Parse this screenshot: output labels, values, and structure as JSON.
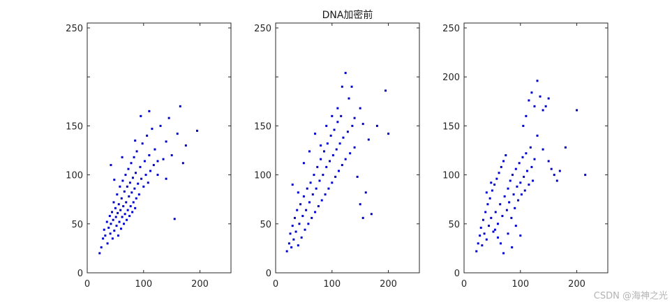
{
  "figure": {
    "title": "DNA加密前",
    "watermark": "CSDN @海神之光"
  },
  "chart_data": [
    {
      "type": "scatter",
      "xlim": [
        0,
        255
      ],
      "ylim": [
        0,
        255
      ],
      "xticks": [
        0,
        100,
        200
      ],
      "yticks": [
        0,
        50,
        100,
        150,
        200,
        250
      ],
      "xtick_labels": [
        "0",
        "100",
        "200"
      ],
      "ytick_labels": [
        "0",
        "50",
        "100",
        "150",
        "",
        "250"
      ],
      "grid": false,
      "marker_color": "#0000cc",
      "points": [
        [
          22,
          20
        ],
        [
          25,
          26
        ],
        [
          28,
          35
        ],
        [
          30,
          44
        ],
        [
          32,
          38
        ],
        [
          35,
          52
        ],
        [
          36,
          30
        ],
        [
          38,
          46
        ],
        [
          40,
          58
        ],
        [
          41,
          40
        ],
        [
          42,
          50
        ],
        [
          44,
          62
        ],
        [
          45,
          35
        ],
        [
          46,
          54
        ],
        [
          47,
          72
        ],
        [
          48,
          43
        ],
        [
          50,
          66
        ],
        [
          51,
          57
        ],
        [
          52,
          48
        ],
        [
          53,
          80
        ],
        [
          54,
          61
        ],
        [
          55,
          38
        ],
        [
          56,
          70
        ],
        [
          57,
          52
        ],
        [
          58,
          88
        ],
        [
          59,
          64
        ],
        [
          60,
          45
        ],
        [
          61,
          76
        ],
        [
          62,
          57
        ],
        [
          63,
          94
        ],
        [
          64,
          68
        ],
        [
          65,
          50
        ],
        [
          66,
          83
        ],
        [
          67,
          60
        ],
        [
          68,
          100
        ],
        [
          69,
          72
        ],
        [
          70,
          54
        ],
        [
          71,
          88
        ],
        [
          72,
          64
        ],
        [
          73,
          106
        ],
        [
          74,
          78
        ],
        [
          75,
          58
        ],
        [
          76,
          92
        ],
        [
          77,
          68
        ],
        [
          78,
          112
        ],
        [
          79,
          82
        ],
        [
          80,
          62
        ],
        [
          81,
          97
        ],
        [
          82,
          72
        ],
        [
          83,
          118
        ],
        [
          84,
          86
        ],
        [
          85,
          66
        ],
        [
          86,
          102
        ],
        [
          87,
          76
        ],
        [
          88,
          124
        ],
        [
          90,
          91
        ],
        [
          92,
          80
        ],
        [
          94,
          108
        ],
        [
          96,
          96
        ],
        [
          98,
          132
        ],
        [
          100,
          88
        ],
        [
          102,
          114
        ],
        [
          104,
          100
        ],
        [
          106,
          140
        ],
        [
          108,
          92
        ],
        [
          110,
          120
        ],
        [
          112,
          104
        ],
        [
          115,
          147
        ],
        [
          118,
          110
        ],
        [
          120,
          126
        ],
        [
          125,
          114
        ],
        [
          130,
          150
        ],
        [
          135,
          116
        ],
        [
          140,
          134
        ],
        [
          145,
          158
        ],
        [
          150,
          120
        ],
        [
          160,
          142
        ],
        [
          165,
          170
        ],
        [
          175,
          130
        ],
        [
          195,
          145
        ],
        [
          42,
          110
        ],
        [
          48,
          95
        ],
        [
          62,
          118
        ],
        [
          85,
          135
        ],
        [
          95,
          160
        ],
        [
          110,
          165
        ],
        [
          125,
          100
        ],
        [
          140,
          96
        ],
        [
          155,
          55
        ],
        [
          170,
          112
        ]
      ]
    },
    {
      "type": "scatter",
      "xlim": [
        0,
        255
      ],
      "ylim": [
        0,
        255
      ],
      "xticks": [
        0,
        100,
        200
      ],
      "yticks": [
        0,
        50,
        100,
        150,
        200,
        250
      ],
      "xtick_labels": [
        "0",
        "100",
        "200"
      ],
      "ytick_labels": [
        "0",
        "50",
        "100",
        "150",
        "",
        "250"
      ],
      "grid": false,
      "marker_color": "#0000cc",
      "points": [
        [
          20,
          22
        ],
        [
          24,
          30
        ],
        [
          26,
          40
        ],
        [
          28,
          26
        ],
        [
          30,
          48
        ],
        [
          32,
          34
        ],
        [
          34,
          56
        ],
        [
          36,
          42
        ],
        [
          38,
          64
        ],
        [
          40,
          28
        ],
        [
          42,
          50
        ],
        [
          44,
          70
        ],
        [
          46,
          36
        ],
        [
          48,
          58
        ],
        [
          50,
          78
        ],
        [
          52,
          44
        ],
        [
          54,
          64
        ],
        [
          56,
          86
        ],
        [
          58,
          50
        ],
        [
          60,
          72
        ],
        [
          62,
          92
        ],
        [
          64,
          56
        ],
        [
          66,
          80
        ],
        [
          68,
          100
        ],
        [
          70,
          62
        ],
        [
          72,
          86
        ],
        [
          74,
          108
        ],
        [
          76,
          68
        ],
        [
          78,
          94
        ],
        [
          80,
          116
        ],
        [
          82,
          74
        ],
        [
          84,
          100
        ],
        [
          86,
          124
        ],
        [
          88,
          80
        ],
        [
          90,
          108
        ],
        [
          92,
          132
        ],
        [
          94,
          86
        ],
        [
          96,
          114
        ],
        [
          98,
          140
        ],
        [
          100,
          92
        ],
        [
          102,
          120
        ],
        [
          104,
          146
        ],
        [
          106,
          98
        ],
        [
          108,
          126
        ],
        [
          110,
          154
        ],
        [
          112,
          104
        ],
        [
          114,
          132
        ],
        [
          116,
          160
        ],
        [
          118,
          110
        ],
        [
          120,
          138
        ],
        [
          124,
          116
        ],
        [
          128,
          144
        ],
        [
          132,
          122
        ],
        [
          136,
          150
        ],
        [
          140,
          128
        ],
        [
          145,
          98
        ],
        [
          150,
          70
        ],
        [
          155,
          56
        ],
        [
          160,
          82
        ],
        [
          170,
          60
        ],
        [
          30,
          90
        ],
        [
          40,
          82
        ],
        [
          50,
          112
        ],
        [
          60,
          124
        ],
        [
          70,
          142
        ],
        [
          80,
          130
        ],
        [
          90,
          150
        ],
        [
          100,
          160
        ],
        [
          110,
          168
        ],
        [
          118,
          190
        ],
        [
          124,
          204
        ],
        [
          130,
          178
        ],
        [
          135,
          190
        ],
        [
          140,
          158
        ],
        [
          150,
          168
        ],
        [
          155,
          152
        ],
        [
          165,
          136
        ],
        [
          180,
          150
        ],
        [
          195,
          186
        ],
        [
          200,
          142
        ]
      ]
    },
    {
      "type": "scatter",
      "xlim": [
        0,
        255
      ],
      "ylim": [
        0,
        255
      ],
      "xticks": [
        0,
        100,
        200
      ],
      "yticks": [
        0,
        50,
        100,
        150,
        200,
        250
      ],
      "xtick_labels": [
        "0",
        "100",
        "200"
      ],
      "ytick_labels": [
        "0",
        "50",
        "100",
        "150",
        "200",
        "250"
      ],
      "grid": false,
      "marker_color": "#0000cc",
      "points": [
        [
          22,
          22
        ],
        [
          25,
          30
        ],
        [
          28,
          38
        ],
        [
          30,
          46
        ],
        [
          32,
          28
        ],
        [
          34,
          54
        ],
        [
          36,
          40
        ],
        [
          38,
          62
        ],
        [
          40,
          34
        ],
        [
          42,
          70
        ],
        [
          44,
          48
        ],
        [
          46,
          76
        ],
        [
          48,
          56
        ],
        [
          50,
          84
        ],
        [
          52,
          42
        ],
        [
          54,
          90
        ],
        [
          56,
          62
        ],
        [
          58,
          96
        ],
        [
          60,
          50
        ],
        [
          62,
          102
        ],
        [
          64,
          70
        ],
        [
          66,
          108
        ],
        [
          68,
          58
        ],
        [
          70,
          114
        ],
        [
          72,
          78
        ],
        [
          74,
          120
        ],
        [
          76,
          64
        ],
        [
          78,
          86
        ],
        [
          80,
          72
        ],
        [
          82,
          94
        ],
        [
          84,
          56
        ],
        [
          86,
          100
        ],
        [
          88,
          80
        ],
        [
          90,
          66
        ],
        [
          92,
          106
        ],
        [
          94,
          88
        ],
        [
          96,
          74
        ],
        [
          98,
          112
        ],
        [
          100,
          92
        ],
        [
          102,
          80
        ],
        [
          104,
          118
        ],
        [
          106,
          98
        ],
        [
          108,
          84
        ],
        [
          110,
          122
        ],
        [
          112,
          104
        ],
        [
          115,
          90
        ],
        [
          118,
          128
        ],
        [
          120,
          108
        ],
        [
          122,
          94
        ],
        [
          125,
          116
        ],
        [
          40,
          82
        ],
        [
          48,
          92
        ],
        [
          55,
          44
        ],
        [
          60,
          36
        ],
        [
          65,
          30
        ],
        [
          70,
          20
        ],
        [
          78,
          40
        ],
        [
          85,
          26
        ],
        [
          92,
          48
        ],
        [
          100,
          38
        ],
        [
          105,
          150
        ],
        [
          110,
          160
        ],
        [
          115,
          176
        ],
        [
          120,
          184
        ],
        [
          125,
          170
        ],
        [
          130,
          196
        ],
        [
          135,
          180
        ],
        [
          140,
          166
        ],
        [
          145,
          170
        ],
        [
          150,
          178
        ],
        [
          130,
          140
        ],
        [
          140,
          126
        ],
        [
          150,
          114
        ],
        [
          155,
          106
        ],
        [
          160,
          100
        ],
        [
          165,
          94
        ],
        [
          170,
          104
        ],
        [
          180,
          128
        ],
        [
          200,
          166
        ],
        [
          215,
          100
        ]
      ]
    }
  ]
}
